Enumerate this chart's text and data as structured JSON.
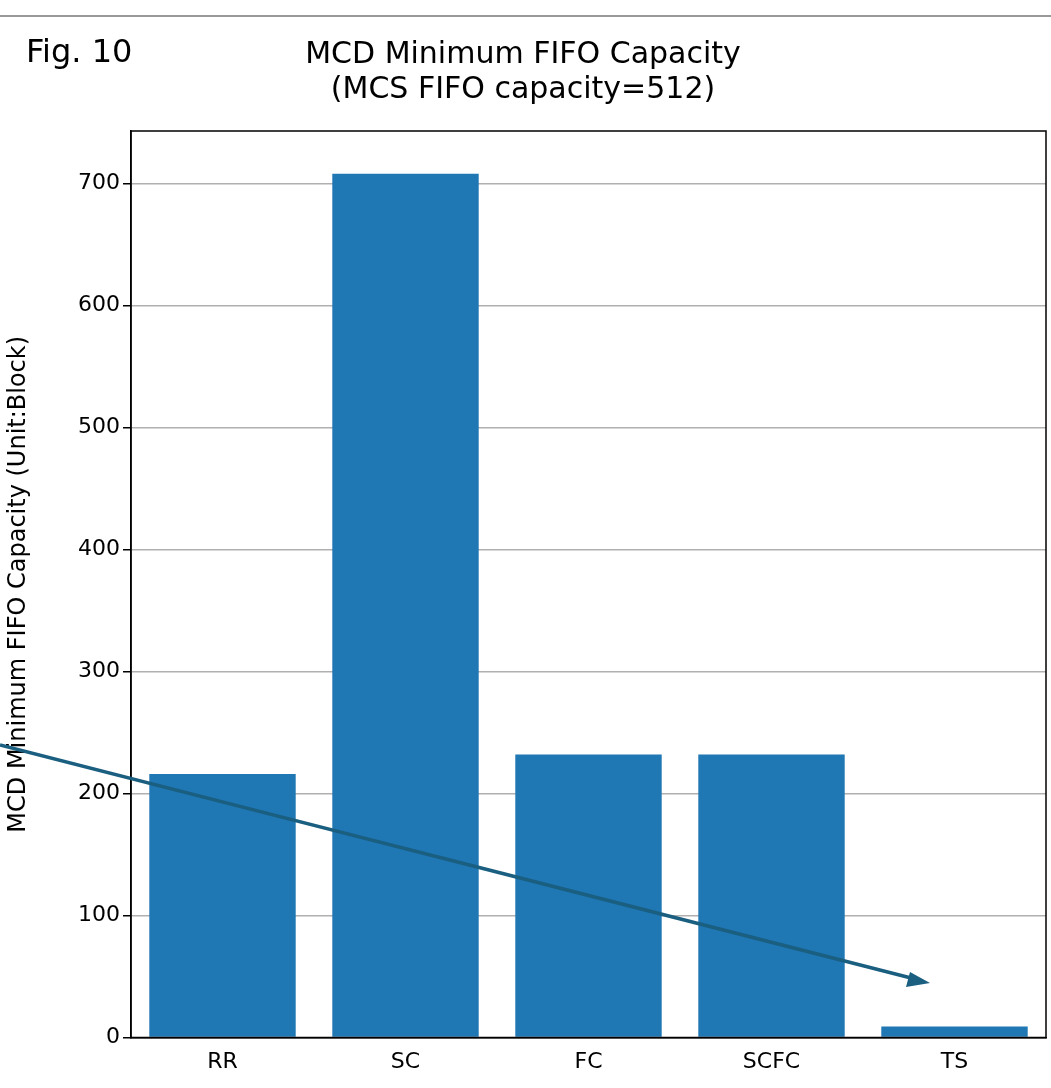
{
  "chart_data": {
    "type": "bar",
    "title": "MCD Minimum FIFO Capacity\n(MCS FIFO capacity=512)",
    "ylabel": "MCD Minimum FIFO Capacity (Unit:Block)",
    "annotations": [
      "Fig. 10"
    ],
    "categories": [
      "RR",
      "SC",
      "FC",
      "SCFC",
      "TS"
    ],
    "values": [
      216,
      708,
      232,
      232,
      9
    ],
    "color": "#1f77b4",
    "ylim": [
      0,
      743
    ],
    "yticks": [
      0,
      100,
      200,
      300,
      400,
      500,
      600,
      700
    ],
    "grid": "y"
  }
}
